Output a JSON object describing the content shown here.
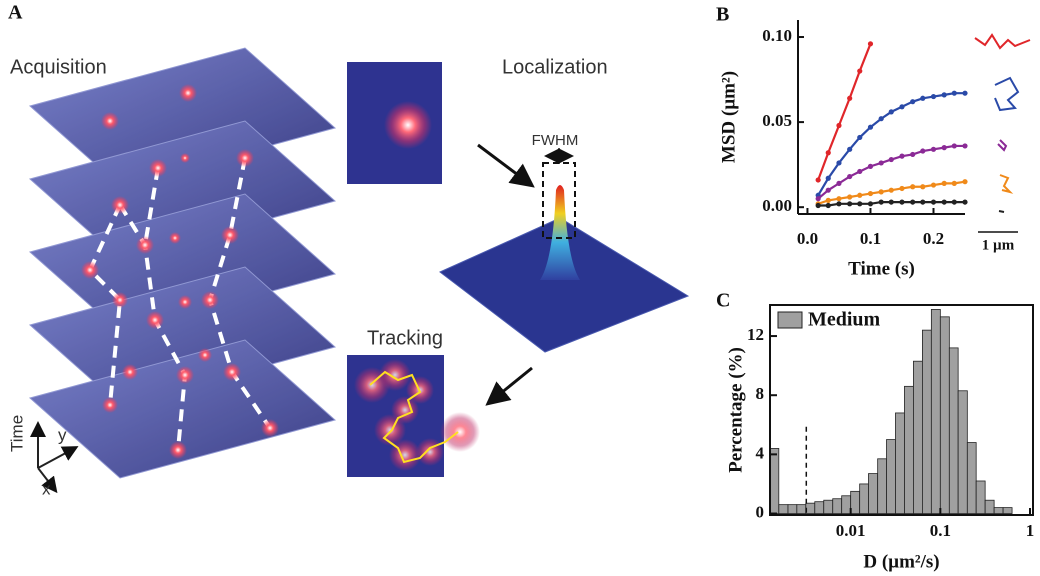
{
  "panel_a": {
    "label": "A",
    "acquisition": "Acquisition",
    "localization": "Localization",
    "fwhm": "FWHM",
    "tracking": "Tracking",
    "axes": {
      "time": "Time",
      "y": "y",
      "x": "x"
    }
  },
  "chart_data": [
    {
      "type": "line",
      "panel_label": "B",
      "x_label": "Time (s)",
      "y_label": "MSD (µm²)",
      "x": [
        0.017,
        0.033,
        0.05,
        0.067,
        0.083,
        0.1,
        0.117,
        0.133,
        0.15,
        0.167,
        0.183,
        0.2,
        0.217,
        0.233,
        0.25
      ],
      "series": [
        {
          "color": "#e0262a",
          "values": [
            0.016,
            0.032,
            0.048,
            0.064,
            0.08,
            0.096,
            null,
            null,
            null,
            null,
            null,
            null,
            null,
            null,
            null
          ]
        },
        {
          "color": "#2a4aa8",
          "values": [
            0.007,
            0.017,
            0.026,
            0.034,
            0.041,
            0.047,
            0.052,
            0.056,
            0.059,
            0.062,
            0.064,
            0.065,
            0.066,
            0.067,
            0.067
          ]
        },
        {
          "color": "#8b2a96",
          "values": [
            0.005,
            0.01,
            0.014,
            0.018,
            0.021,
            0.024,
            0.026,
            0.028,
            0.03,
            0.031,
            0.033,
            0.034,
            0.035,
            0.036,
            0.036
          ]
        },
        {
          "color": "#f08a1a",
          "values": [
            0.002,
            0.004,
            0.005,
            0.006,
            0.007,
            0.008,
            0.009,
            0.01,
            0.011,
            0.012,
            0.012,
            0.013,
            0.014,
            0.014,
            0.015
          ]
        },
        {
          "color": "#222222",
          "values": [
            0.001,
            0.001,
            0.002,
            0.002,
            0.002,
            0.002,
            0.003,
            0.003,
            0.003,
            0.003,
            0.003,
            0.003,
            0.003,
            0.003,
            0.003
          ]
        }
      ],
      "xlim": [
        -0.015,
        0.25
      ],
      "ylim": [
        -0.004,
        0.11
      ],
      "xticks": [
        {
          "value": 0,
          "label": "0.0"
        },
        0.1,
        0.2
      ],
      "yticks": [
        {
          "value": 0,
          "label": "0.00"
        },
        {
          "value": 0.05,
          "label": "0.05"
        },
        {
          "value": 0.1,
          "label": "0.10"
        }
      ],
      "scale_bar_label": "1 µm"
    },
    {
      "type": "histogram",
      "panel_label": "C",
      "x_label": "D (µm²/s)",
      "y_label": "Percentage (%)",
      "bins": [
        0.00126,
        0.00158,
        0.002,
        0.00251,
        0.00316,
        0.00398,
        0.00501,
        0.00631,
        0.00794,
        0.01,
        0.0126,
        0.0158,
        0.02,
        0.0251,
        0.0316,
        0.0398,
        0.0501,
        0.0631,
        0.0794,
        0.1,
        0.126,
        0.158,
        0.2,
        0.251,
        0.316,
        0.398,
        0.501,
        0.631
      ],
      "counts": [
        4.4,
        0.6,
        0.6,
        0.6,
        0.7,
        0.8,
        0.9,
        1.0,
        1.2,
        1.5,
        2.0,
        2.7,
        3.7,
        5.0,
        6.8,
        8.6,
        10.3,
        12.4,
        13.8,
        13.3,
        11.2,
        8.3,
        4.8,
        2.2,
        0.9,
        0.4,
        0.4
      ],
      "series_name": "Medium",
      "color": "#a0a0a0",
      "xlog": true,
      "legend": "upper left",
      "xlim": [
        0.00126,
        1.08
      ],
      "ylim": [
        -0.1,
        14.1
      ],
      "xticks": [
        0.01,
        0.1,
        1
      ],
      "yticks": [
        0,
        4,
        8,
        12
      ],
      "threshold": 0.0032
    }
  ]
}
